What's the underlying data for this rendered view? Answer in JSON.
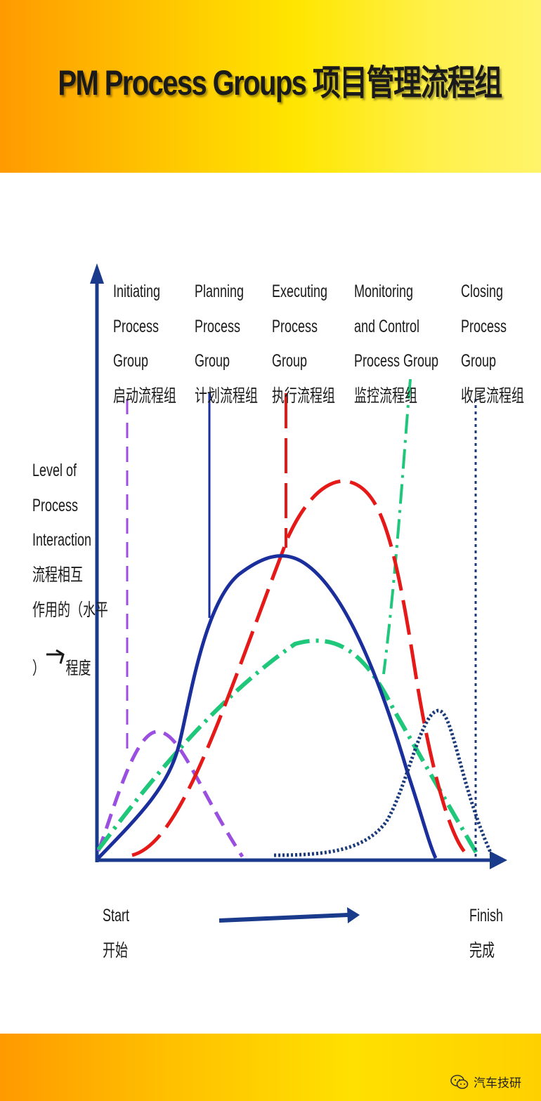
{
  "title": "PM Process Groups  项目管理流程组",
  "y_axis_label": [
    "Level of",
    "Process",
    "Interaction",
    "流程相互",
    "作用的（水平",
    "）",
    "程度"
  ],
  "process_groups": [
    {
      "id": "initiating",
      "lines": [
        "Initiating",
        "Process",
        "Group",
        "启动流程组"
      ],
      "color": "#9b4fe0",
      "style": "dashed"
    },
    {
      "id": "planning",
      "lines": [
        "Planning",
        "Process",
        "Group",
        "计划流程组"
      ],
      "color": "#1a2e9c",
      "style": "solid"
    },
    {
      "id": "executing",
      "lines": [
        "Executing",
        "Process",
        "Group",
        "执行流程组"
      ],
      "color": "#e61919",
      "style": "dashed"
    },
    {
      "id": "monitoring",
      "lines": [
        "Monitoring",
        "and Control",
        "Process Group",
        "监控流程组"
      ],
      "color": "#1fc77a",
      "style": "dash-dot"
    },
    {
      "id": "closing",
      "lines": [
        "Closing",
        "Process",
        "Group",
        "收尾流程组"
      ],
      "color": "#1a3a7a",
      "style": "dotted"
    }
  ],
  "start_label": [
    "Start",
    "开始"
  ],
  "finish_label": [
    "Finish",
    "完成"
  ],
  "axis_color": "#1a3a8c",
  "watermark": "汽车技研"
}
